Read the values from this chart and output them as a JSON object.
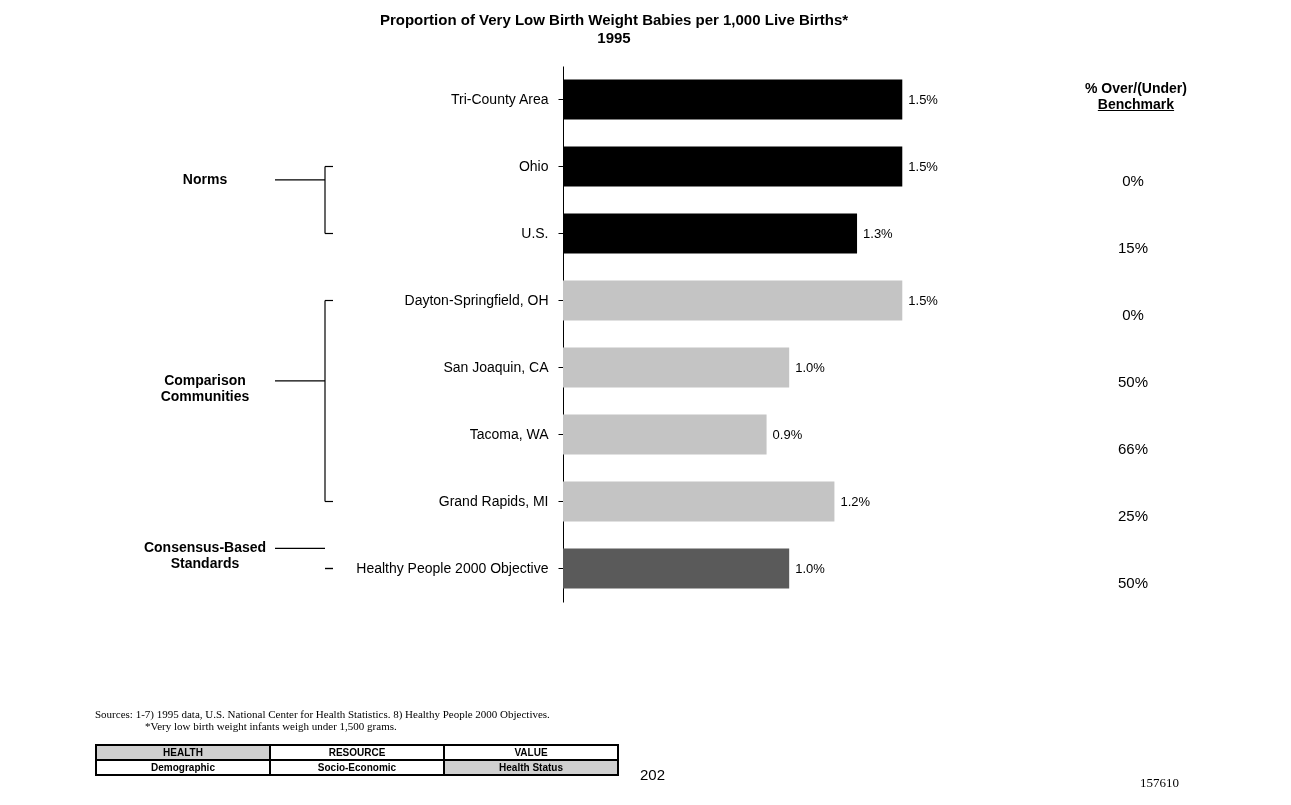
{
  "chart_data": {
    "type": "bar",
    "orientation": "horizontal",
    "title": "Proportion of Very Low Birth Weight Babies per 1,000 Live Births*",
    "subtitle": "1995",
    "categories": [
      "Tri-County Area",
      "Ohio",
      "U.S.",
      "Dayton-Springfield, OH",
      "San Joaquin, CA",
      "Tacoma, WA",
      "Grand Rapids, MI",
      "Healthy People 2000 Objective"
    ],
    "values": [
      1.5,
      1.5,
      1.3,
      1.5,
      1.0,
      0.9,
      1.2,
      1.0
    ],
    "value_labels": [
      "1.5%",
      "1.5%",
      "1.3%",
      "1.5%",
      "1.0%",
      "0.9%",
      "1.2%",
      "1.0%"
    ],
    "colors": [
      "#000000",
      "#000000",
      "#000000",
      "#c4c4c4",
      "#c4c4c4",
      "#c4c4c4",
      "#c4c4c4",
      "#5a5a5a"
    ],
    "annotations": [
      "Norms",
      "Comparison Communities",
      "Consensus-Based Standards",
      "% Over/(Under) Benchmark",
      "0%",
      "15%",
      "0%",
      "50%",
      "66%",
      "25%",
      "50%",
      "Sources:   1-7) 1995 data, U.S. National Center for Health Statistics. 8) Healthy People 2000 Objectives.",
      "*Very low birth weight infants weigh under 1,500 grams.",
      "HEALTH",
      "RESOURCE",
      "VALUE",
      "Demographic",
      "Socio-Economic",
      "Health Status",
      "202",
      "157610"
    ]
  }
}
